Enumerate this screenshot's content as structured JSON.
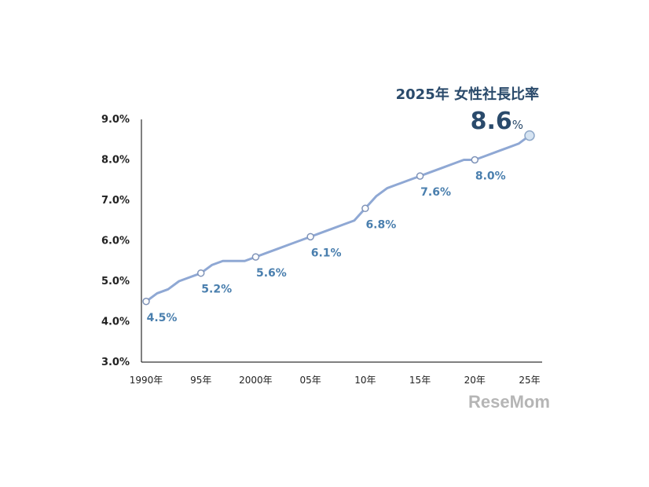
{
  "chart_data": {
    "type": "line",
    "title": "2025年 女性社長比率",
    "headline_value": "8.6",
    "headline_unit": "%",
    "x": [
      1990,
      1991,
      1992,
      1993,
      1994,
      1995,
      1996,
      1997,
      1998,
      1999,
      2000,
      2001,
      2002,
      2003,
      2004,
      2005,
      2006,
      2007,
      2008,
      2009,
      2010,
      2011,
      2012,
      2013,
      2014,
      2015,
      2016,
      2017,
      2018,
      2019,
      2020,
      2021,
      2022,
      2023,
      2024,
      2025
    ],
    "values": [
      4.5,
      4.7,
      4.8,
      5.0,
      5.1,
      5.2,
      5.4,
      5.5,
      5.5,
      5.5,
      5.6,
      5.7,
      5.8,
      5.9,
      6.0,
      6.1,
      6.2,
      6.3,
      6.4,
      6.5,
      6.8,
      7.1,
      7.3,
      7.4,
      7.5,
      7.6,
      7.7,
      7.8,
      7.9,
      8.0,
      8.0,
      8.1,
      8.2,
      8.3,
      8.4,
      8.6
    ],
    "data_labels": [
      {
        "x": 1990,
        "label": "4.5%"
      },
      {
        "x": 1995,
        "label": "5.2%"
      },
      {
        "x": 2000,
        "label": "5.6%"
      },
      {
        "x": 2005,
        "label": "6.1%"
      },
      {
        "x": 2010,
        "label": "6.8%"
      },
      {
        "x": 2015,
        "label": "7.6%"
      },
      {
        "x": 2020,
        "label": "8.0%"
      }
    ],
    "ylim": [
      3.0,
      9.0
    ],
    "xlim": [
      1990,
      2025
    ],
    "y_ticks": [
      "3.0%",
      "4.0%",
      "5.0%",
      "6.0%",
      "7.0%",
      "8.0%",
      "9.0%"
    ],
    "x_ticks": [
      {
        "x": 1990,
        "label": "1990年"
      },
      {
        "x": 1995,
        "label": "95年"
      },
      {
        "x": 2000,
        "label": "2000年"
      },
      {
        "x": 2005,
        "label": "05年"
      },
      {
        "x": 2010,
        "label": "10年"
      },
      {
        "x": 2015,
        "label": "15年"
      },
      {
        "x": 2020,
        "label": "20年"
      },
      {
        "x": 2025,
        "label": "25年"
      }
    ],
    "grid": false,
    "colors": {
      "line": "#8fa8d4",
      "label": "#4a7fae",
      "title": "#2a4a6b",
      "endpoint_fill": "#d6e4f2"
    }
  },
  "watermark": "ReseMom"
}
